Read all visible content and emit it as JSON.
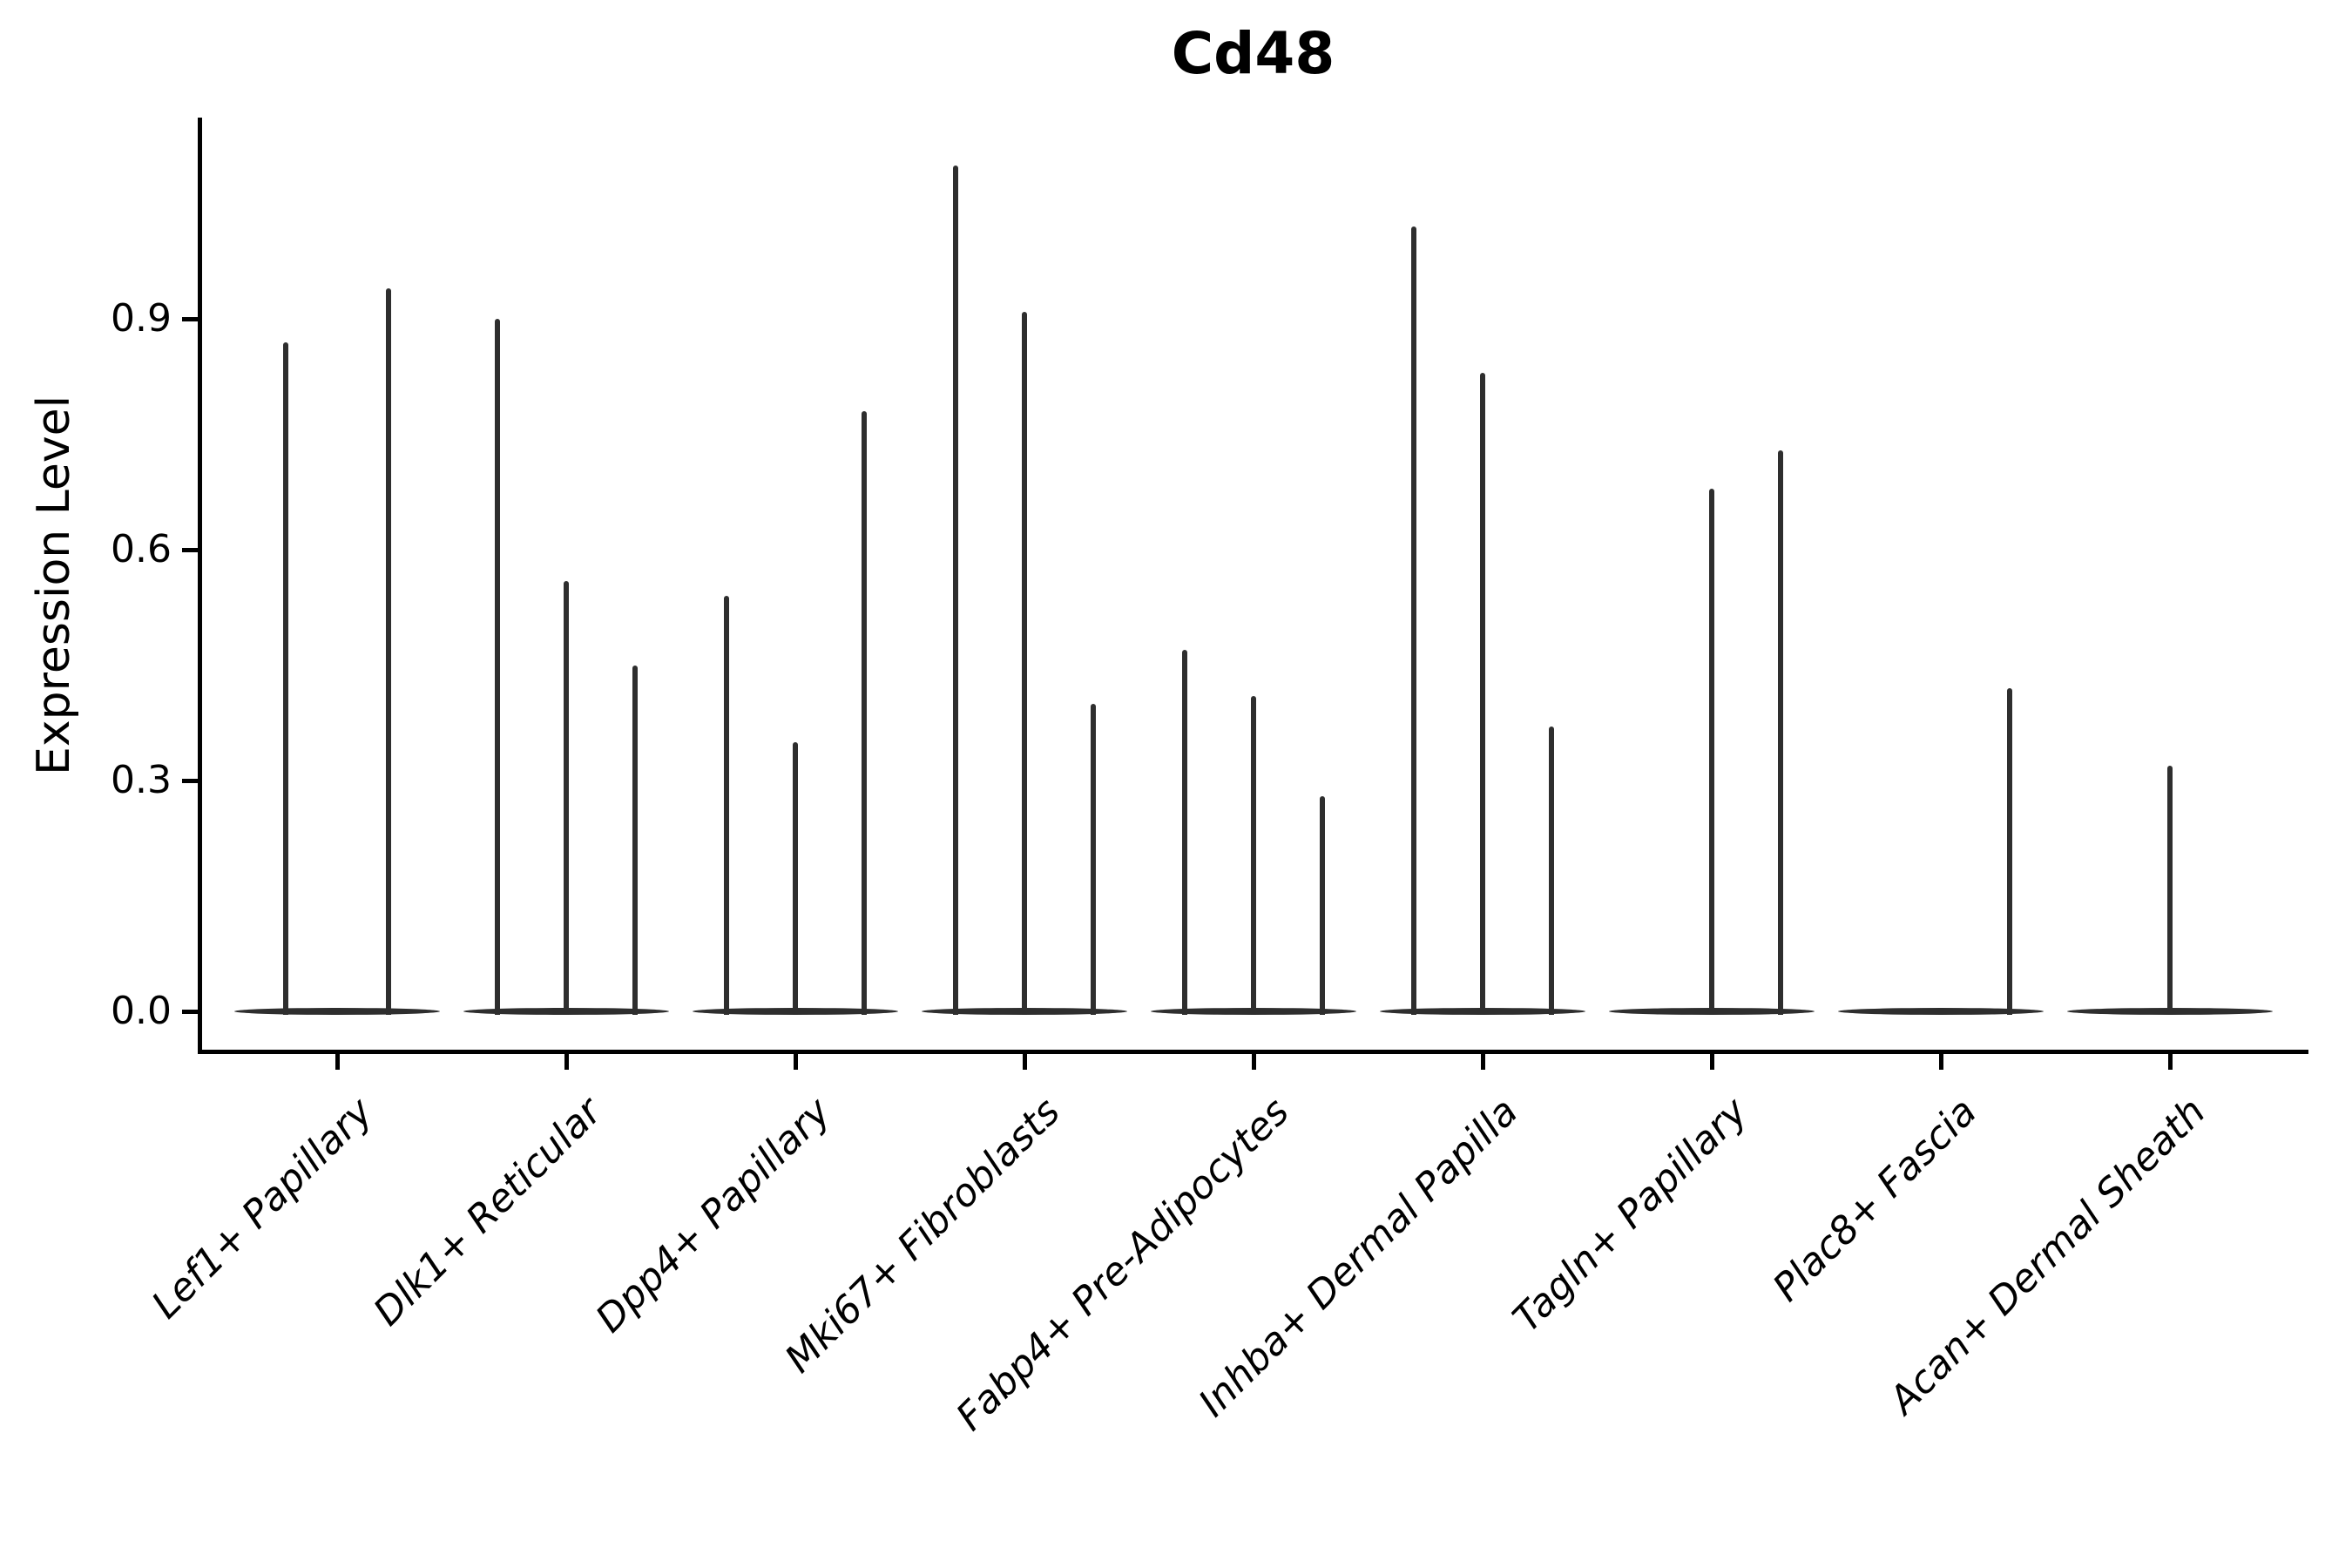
{
  "figure": {
    "title": "Cd48",
    "background": "#ffffff"
  },
  "chart_data": {
    "type": "violin",
    "title": "Cd48",
    "xlabel": "",
    "ylabel": "Expression Level",
    "ylim": [
      -0.053,
      1.162
    ],
    "yticks": [
      0.0,
      0.3,
      0.6,
      0.9
    ],
    "ytick_labels": [
      "0.0",
      "0.3",
      "0.6",
      "0.9"
    ],
    "grid": false,
    "legend_position": "none",
    "categories": [
      "Lef1+ Papillary",
      "Dlk1+ Reticular",
      "Dpp4+ Papillary",
      "Mki67+ Fibroblasts",
      "Fabp4+ Pre-Adipocytes",
      "Inhba+ Dermal Papilla",
      "Tagln+ Papillary",
      "Plac8+ Fascia",
      "Acan+ Dermal Sheath"
    ],
    "groups": [
      {
        "category": "Lef1+ Papillary",
        "violins": [
          {
            "offset": -0.225,
            "max": 0.87
          },
          {
            "offset": 0.225,
            "max": 0.94
          }
        ]
      },
      {
        "category": "Dlk1+ Reticular",
        "violins": [
          {
            "offset": -0.3,
            "max": 0.9
          },
          {
            "offset": 0.0,
            "max": 0.56
          },
          {
            "offset": 0.3,
            "max": 0.45
          }
        ]
      },
      {
        "category": "Dpp4+ Papillary",
        "violins": [
          {
            "offset": -0.3,
            "max": 0.54
          },
          {
            "offset": 0.0,
            "max": 0.35
          },
          {
            "offset": 0.3,
            "max": 0.78
          }
        ]
      },
      {
        "category": "Mki67+ Fibroblasts",
        "violins": [
          {
            "offset": -0.3,
            "max": 1.1
          },
          {
            "offset": 0.0,
            "max": 0.91
          },
          {
            "offset": 0.3,
            "max": 0.4
          }
        ]
      },
      {
        "category": "Fabp4+ Pre-Adipocytes",
        "violins": [
          {
            "offset": -0.3,
            "max": 0.47
          },
          {
            "offset": 0.0,
            "max": 0.41
          },
          {
            "offset": 0.3,
            "max": 0.28
          }
        ]
      },
      {
        "category": "Inhba+ Dermal Papilla",
        "violins": [
          {
            "offset": -0.3,
            "max": 1.02
          },
          {
            "offset": 0.0,
            "max": 0.83
          },
          {
            "offset": 0.3,
            "max": 0.37
          }
        ]
      },
      {
        "category": "Tagln+ Papillary",
        "violins": [
          {
            "offset": 0.0,
            "max": 0.68
          },
          {
            "offset": 0.3,
            "max": 0.73
          }
        ]
      },
      {
        "category": "Plac8+ Fascia",
        "violins": [
          {
            "offset": 0.3,
            "max": 0.42
          }
        ]
      },
      {
        "category": "Acan+ Dermal Sheath",
        "violins": [
          {
            "offset": 0.0,
            "max": 0.32
          }
        ]
      }
    ],
    "baseline_value": 0.0,
    "baseline_halfwidth_frac": 0.45,
    "colors": {
      "violin": "#2e2e2e",
      "axis": "#000000",
      "text": "#000000",
      "background": "#ffffff"
    }
  }
}
